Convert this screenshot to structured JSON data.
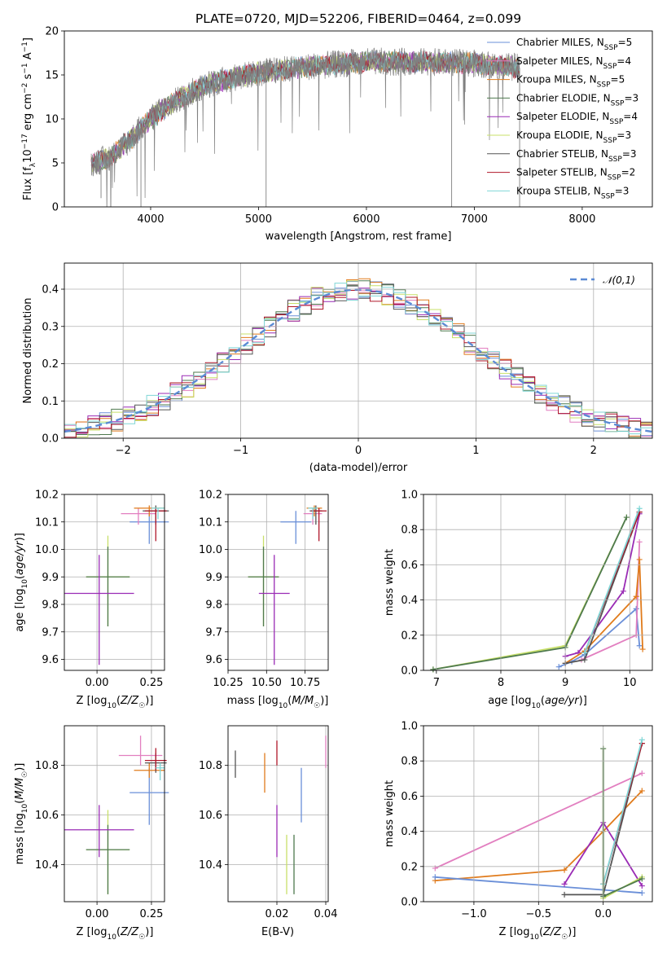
{
  "figure": {
    "title": "PLATE=0720, MJD=52206, FIBERID=0464, z=0.099"
  },
  "colors": {
    "Chabrier MILES": "#6a8fd8",
    "Salpeter MILES": "#e27fc0",
    "Kroupa MILES": "#e07b1c",
    "Chabrier ELODIE": "#4f7a4f",
    "Salpeter ELODIE": "#9a2bb5",
    "Kroupa ELODIE": "#c8e06a",
    "Chabrier STELIB": "#555555",
    "Salpeter STELIB": "#b0172a",
    "Kroupa STELIB": "#7fd6d6",
    "green_fit": "#7ac72a",
    "data_gray": "#808080"
  },
  "chart_data": [
    {
      "id": "spectrum",
      "type": "line",
      "title": "PLATE=0720, MJD=52206, FIBERID=0464, z=0.099",
      "xlabel": "wavelength [Angstrom, rest frame]",
      "ylabel": "Flux [f_λ 10^-17 erg cm^-2 s^-1 A^-1]",
      "xlim": [
        3200,
        8650
      ],
      "ylim": [
        0,
        20
      ],
      "xticks": [
        4000,
        5000,
        6000,
        7000,
        8000
      ],
      "yticks": [
        0,
        5,
        10,
        15,
        20
      ],
      "continuum": [
        [
          3450,
          5.0
        ],
        [
          3600,
          5.5
        ],
        [
          3800,
          7.5
        ],
        [
          3950,
          9.5
        ],
        [
          4100,
          11.0
        ],
        [
          4300,
          12.5
        ],
        [
          4500,
          13.8
        ],
        [
          4800,
          14.8
        ],
        [
          5100,
          15.4
        ],
        [
          5500,
          16.0
        ],
        [
          6000,
          16.5
        ],
        [
          6500,
          16.5
        ],
        [
          7000,
          16.3
        ],
        [
          7300,
          16.0
        ],
        [
          7420,
          15.8
        ]
      ],
      "spikes_down": [
        [
          3540,
          1.0
        ],
        [
          3910,
          0.0
        ],
        [
          5070,
          0.0
        ],
        [
          6790,
          0.0
        ],
        [
          7420,
          0.0
        ]
      ],
      "legend": [
        "Chabrier MILES, N_SSP=5",
        "Salpeter MILES, N_SSP=4",
        "Kroupa MILES, N_SSP=5",
        "Chabrier ELODIE, N_SSP=3",
        "Salpeter ELODIE, N_SSP=4",
        "Kroupa ELODIE, N_SSP=3",
        "Chabrier STELIB, N_SSP=3",
        "Salpeter STELIB, N_SSP=2",
        "Kroupa STELIB, N_SSP=3"
      ]
    },
    {
      "id": "residuals",
      "type": "line",
      "xlabel": "(data-model)/error",
      "ylabel": "Normed distribution",
      "xlim": [
        -2.5,
        2.5
      ],
      "ylim": [
        0,
        0.47
      ],
      "xticks": [
        -2,
        -1,
        0,
        1,
        2
      ],
      "yticks": [
        0.0,
        0.1,
        0.2,
        0.3,
        0.4
      ],
      "grid": true,
      "legend": [
        "𝒩(0,1)"
      ],
      "legend_position": "top-right",
      "bin_width": 0.1,
      "bin_start": -2.5,
      "gaussian_mean": 0,
      "gaussian_sigma": 1
    },
    {
      "id": "age_vs_Z",
      "type": "scatter",
      "xlabel": "Z [log₁₀(Z/Z☉)]",
      "ylabel": "age  [log₁₀(age/yr)]",
      "xlim": [
        -0.15,
        0.31
      ],
      "ylim": [
        9.56,
        10.2
      ],
      "xticks": [
        0.0,
        0.25
      ],
      "yticks": [
        9.6,
        9.7,
        9.8,
        9.9,
        10.0,
        10.1,
        10.2
      ],
      "points": [
        {
          "model": "Kroupa ELODIE",
          "x": 0.05,
          "y": 9.9,
          "xerr": 0.1,
          "yerr": [
            0.18,
            0.15
          ]
        },
        {
          "model": "Chabrier ELODIE",
          "x": 0.05,
          "y": 9.9,
          "xerr": 0.1,
          "yerr": [
            0.18,
            0.11
          ]
        },
        {
          "model": "Salpeter ELODIE",
          "x": 0.01,
          "y": 9.84,
          "xerr": 0.16,
          "yerr": [
            0.26,
            0.14
          ]
        },
        {
          "model": "Chabrier MILES",
          "x": 0.24,
          "y": 10.1,
          "xerr": 0.09,
          "yerr": [
            0.08,
            0.04
          ]
        },
        {
          "model": "Salpeter MILES",
          "x": 0.19,
          "y": 10.13,
          "xerr": 0.08,
          "yerr": [
            0.04,
            0.02
          ]
        },
        {
          "model": "Kroupa MILES",
          "x": 0.24,
          "y": 10.15,
          "xerr": 0.07,
          "yerr": [
            0.03,
            0.01
          ]
        },
        {
          "model": "Chabrier STELIB",
          "x": 0.27,
          "y": 10.14,
          "xerr": 0.06,
          "yerr": [
            0.05,
            0.02
          ]
        },
        {
          "model": "Salpeter STELIB",
          "x": 0.27,
          "y": 10.14,
          "xerr": 0.05,
          "yerr": [
            0.11,
            0.01
          ]
        },
        {
          "model": "Kroupa STELIB",
          "x": 0.28,
          "y": 10.15,
          "xerr": 0.03,
          "yerr": [
            0.04,
            0.0
          ]
        }
      ]
    },
    {
      "id": "age_vs_mass",
      "type": "scatter",
      "xlabel": "mass [log₁₀(M/M☉)]",
      "ylabel": "",
      "xlim": [
        10.25,
        10.9
      ],
      "ylim": [
        9.56,
        10.2
      ],
      "xticks": [
        10.25,
        10.5,
        10.75
      ],
      "yticks": [
        9.6,
        9.7,
        9.8,
        9.9,
        10.0,
        10.1,
        10.2
      ],
      "points": [
        {
          "model": "Kroupa ELODIE",
          "x": 10.48,
          "y": 9.9,
          "xerr": 0.1,
          "yerr": [
            0.18,
            0.15
          ]
        },
        {
          "model": "Chabrier ELODIE",
          "x": 10.48,
          "y": 9.9,
          "xerr": 0.1,
          "yerr": [
            0.18,
            0.11
          ]
        },
        {
          "model": "Salpeter ELODIE",
          "x": 10.55,
          "y": 9.84,
          "xerr": 0.1,
          "yerr": [
            0.26,
            0.14
          ]
        },
        {
          "model": "Chabrier MILES",
          "x": 10.69,
          "y": 10.1,
          "xerr": 0.1,
          "yerr": [
            0.08,
            0.04
          ]
        },
        {
          "model": "Salpeter MILES",
          "x": 10.8,
          "y": 10.13,
          "xerr": 0.06,
          "yerr": [
            0.04,
            0.02
          ]
        },
        {
          "model": "Kroupa MILES",
          "x": 10.81,
          "y": 10.15,
          "xerr": 0.05,
          "yerr": [
            0.03,
            0.01
          ]
        },
        {
          "model": "Chabrier STELIB",
          "x": 10.82,
          "y": 10.14,
          "xerr": 0.04,
          "yerr": [
            0.05,
            0.02
          ]
        },
        {
          "model": "Salpeter STELIB",
          "x": 10.84,
          "y": 10.14,
          "xerr": 0.05,
          "yerr": [
            0.11,
            0.01
          ]
        },
        {
          "model": "Kroupa STELIB",
          "x": 10.8,
          "y": 10.15,
          "xerr": 0.03,
          "yerr": [
            0.04,
            0.0
          ]
        }
      ]
    },
    {
      "id": "weight_vs_age",
      "type": "line",
      "xlabel": "age  [log₁₀(age/yr)]",
      "ylabel": "mass weight",
      "xlim": [
        6.8,
        10.35
      ],
      "ylim": [
        0,
        1.0
      ],
      "xticks": [
        7,
        8,
        9,
        10
      ],
      "yticks": [
        0.0,
        0.2,
        0.4,
        0.6,
        0.8,
        1.0
      ],
      "grid": true,
      "series": [
        {
          "model": "Kroupa ELODIE",
          "x": [
            6.95,
            9.0,
            9.95
          ],
          "y": [
            0.005,
            0.14,
            0.87
          ]
        },
        {
          "model": "Chabrier ELODIE",
          "x": [
            6.95,
            9.0,
            9.95
          ],
          "y": [
            0.005,
            0.13,
            0.87
          ]
        },
        {
          "model": "Salpeter ELODIE",
          "x": [
            9.0,
            9.2,
            9.9,
            10.15
          ],
          "y": [
            0.08,
            0.1,
            0.45,
            0.89
          ]
        },
        {
          "model": "Chabrier MILES",
          "x": [
            8.9,
            9.1,
            9.3,
            10.1,
            10.15
          ],
          "y": [
            0.02,
            0.05,
            0.09,
            0.35,
            0.14
          ]
        },
        {
          "model": "Salpeter MILES",
          "x": [
            9.25,
            10.1,
            10.15
          ],
          "y": [
            0.06,
            0.2,
            0.73
          ]
        },
        {
          "model": "Kroupa MILES",
          "x": [
            9.0,
            9.3,
            10.1,
            10.15,
            10.2
          ],
          "y": [
            0.04,
            0.11,
            0.42,
            0.63,
            0.12
          ]
        },
        {
          "model": "Chabrier STELIB",
          "x": [
            9.0,
            9.3,
            10.15
          ],
          "y": [
            0.04,
            0.06,
            0.9
          ]
        },
        {
          "model": "Salpeter STELIB",
          "x": [
            9.3,
            10.15
          ],
          "y": [
            0.1,
            0.9
          ]
        },
        {
          "model": "Kroupa STELIB",
          "x": [
            9.3,
            10.15
          ],
          "y": [
            0.1,
            0.92
          ]
        }
      ]
    },
    {
      "id": "mass_vs_Z",
      "type": "scatter",
      "xlabel": "Z [log₁₀(Z/Z☉)]",
      "ylabel": "mass [log₁₀(M/M☉)]",
      "xlim": [
        -0.15,
        0.31
      ],
      "ylim": [
        10.25,
        10.96
      ],
      "xticks": [
        0.0,
        0.25
      ],
      "yticks": [
        10.4,
        10.6,
        10.8
      ],
      "points": [
        {
          "model": "Kroupa ELODIE",
          "x": 0.05,
          "y": 10.46,
          "xerr": 0.1,
          "yerr": [
            0.18,
            0.16
          ]
        },
        {
          "model": "Chabrier ELODIE",
          "x": 0.05,
          "y": 10.46,
          "xerr": 0.1,
          "yerr": [
            0.18,
            0.1
          ]
        },
        {
          "model": "Salpeter ELODIE",
          "x": 0.01,
          "y": 10.54,
          "xerr": 0.16,
          "yerr": [
            0.11,
            0.1
          ]
        },
        {
          "model": "Chabrier MILES",
          "x": 0.24,
          "y": 10.69,
          "xerr": 0.09,
          "yerr": [
            0.13,
            0.1
          ]
        },
        {
          "model": "Salpeter MILES",
          "x": 0.2,
          "y": 10.84,
          "xerr": 0.1,
          "yerr": [
            0.04,
            0.08
          ]
        },
        {
          "model": "Kroupa MILES",
          "x": 0.24,
          "y": 10.78,
          "xerr": 0.07,
          "yerr": [
            0.03,
            0.03
          ]
        },
        {
          "model": "Chabrier STELIB",
          "x": 0.27,
          "y": 10.81,
          "xerr": 0.05,
          "yerr": [
            0.04,
            0.04
          ]
        },
        {
          "model": "Salpeter STELIB",
          "x": 0.27,
          "y": 10.82,
          "xerr": 0.05,
          "yerr": [
            0.04,
            0.05
          ]
        },
        {
          "model": "Kroupa STELIB",
          "x": 0.29,
          "y": 10.79,
          "xerr": 0.02,
          "yerr": [
            0.05,
            0.02
          ]
        }
      ]
    },
    {
      "id": "mass_vs_EBV",
      "type": "scatter",
      "xlabel": "E(B-V)",
      "ylabel": "",
      "xlim": [
        0.0,
        0.041
      ],
      "ylim": [
        10.25,
        10.96
      ],
      "xticks": [
        0.02,
        0.04
      ],
      "yticks": [
        10.4,
        10.6,
        10.8
      ],
      "points": [
        {
          "model": "Chabrier STELIB",
          "x": 0.003,
          "y": 10.8,
          "yerr": [
            0.05,
            0.06
          ]
        },
        {
          "model": "Kroupa MILES",
          "x": 0.015,
          "y": 10.77,
          "yerr": [
            0.08,
            0.08
          ]
        },
        {
          "model": "Salpeter STELIB",
          "x": 0.02,
          "y": 10.84,
          "yerr": [
            0.04,
            0.06
          ]
        },
        {
          "model": "Salpeter ELODIE",
          "x": 0.02,
          "y": 10.54,
          "yerr": [
            0.11,
            0.1
          ]
        },
        {
          "model": "Kroupa ELODIE",
          "x": 0.024,
          "y": 10.44,
          "yerr": [
            0.16,
            0.08
          ]
        },
        {
          "model": "Chabrier ELODIE",
          "x": 0.027,
          "y": 10.44,
          "yerr": [
            0.16,
            0.08
          ]
        },
        {
          "model": "Chabrier MILES",
          "x": 0.03,
          "y": 10.69,
          "yerr": [
            0.12,
            0.1
          ]
        },
        {
          "model": "Salpeter MILES",
          "x": 0.04,
          "y": 10.84,
          "yerr": [
            0.05,
            0.08
          ]
        }
      ]
    },
    {
      "id": "weight_vs_Z",
      "type": "line",
      "xlabel": "Z [log₁₀(Z/Z☉)]",
      "ylabel": "mass weight",
      "xlim": [
        -1.39,
        0.38
      ],
      "ylim": [
        0,
        1.0
      ],
      "xticks": [
        -1.0,
        -0.5,
        0.0
      ],
      "yticks": [
        0.0,
        0.2,
        0.4,
        0.6,
        0.8,
        1.0
      ],
      "grid": true,
      "series": [
        {
          "model": "Salpeter MILES",
          "x": [
            -1.3,
            0.3
          ],
          "y": [
            0.19,
            0.73
          ]
        },
        {
          "model": "Kroupa MILES",
          "x": [
            -1.3,
            -0.3,
            0.0,
            0.3
          ],
          "y": [
            0.12,
            0.18,
            0.4,
            0.63
          ]
        },
        {
          "model": "Chabrier MILES",
          "x": [
            -1.3,
            0.3
          ],
          "y": [
            0.14,
            0.05
          ]
        },
        {
          "model": "Salpeter ELODIE",
          "x": [
            -0.3,
            0.0,
            0.3
          ],
          "y": [
            0.1,
            0.45,
            0.09
          ]
        },
        {
          "model": "Chabrier STELIB",
          "x": [
            -0.3,
            0.0,
            0.3
          ],
          "y": [
            0.04,
            0.04,
            0.9
          ]
        },
        {
          "model": "Salpeter STELIB",
          "x": [
            0.0,
            0.3
          ],
          "y": [
            0.1,
            0.9
          ]
        },
        {
          "model": "Kroupa STELIB",
          "x": [
            0.0,
            0.3
          ],
          "y": [
            0.1,
            0.92
          ]
        },
        {
          "model": "Kroupa ELODIE",
          "x": [
            0.0,
            0.0,
            0.3
          ],
          "y": [
            0.87,
            0.02,
            0.14
          ]
        },
        {
          "model": "Chabrier ELODIE",
          "x": [
            0.0,
            0.0,
            0.3
          ],
          "y": [
            0.87,
            0.03,
            0.13
          ]
        }
      ]
    }
  ]
}
